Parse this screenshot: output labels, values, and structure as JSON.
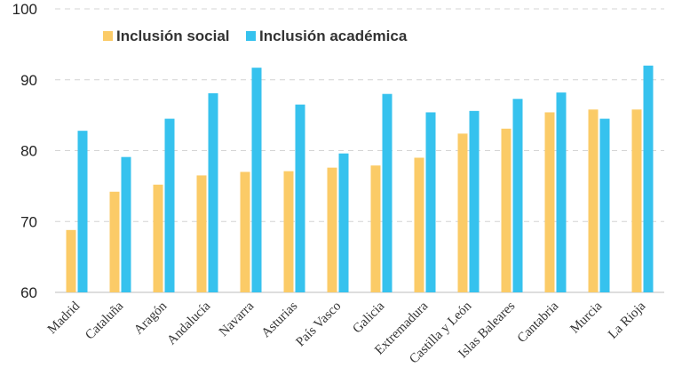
{
  "chart_data": {
    "type": "bar",
    "title": "",
    "xlabel": "",
    "ylabel": "",
    "ylim": [
      60,
      100
    ],
    "yticks": [
      60,
      70,
      80,
      90,
      100
    ],
    "grid": true,
    "legend_position": "top-left",
    "categories": [
      "Madrid",
      "Cataluña",
      "Aragón",
      "Andalucía",
      "Navarra",
      "Asturias",
      "País Vasco",
      "Galicia",
      "Extremadura",
      "Castilla y León",
      "Islas Baleares",
      "Cantabria",
      "Murcia",
      "La Rioja"
    ],
    "series": [
      {
        "name": "Inclusión social",
        "color": "#FBCB67",
        "values": [
          68.8,
          74.2,
          75.2,
          76.5,
          77.0,
          77.1,
          77.6,
          77.9,
          79.0,
          82.4,
          83.1,
          85.4,
          85.8,
          85.8
        ]
      },
      {
        "name": "Inclusión académica",
        "color": "#36C2EE",
        "values": [
          82.8,
          79.1,
          84.5,
          88.1,
          91.7,
          86.5,
          79.6,
          88.0,
          85.4,
          85.6,
          87.3,
          88.2,
          84.5,
          92.0
        ]
      }
    ]
  }
}
